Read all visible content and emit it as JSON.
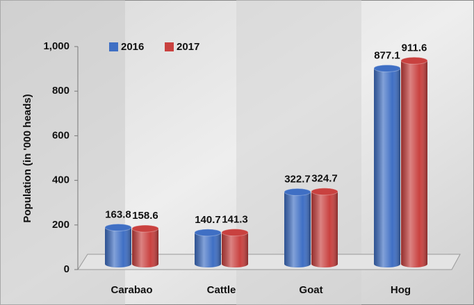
{
  "chart_data": {
    "type": "bar",
    "y_label": "Population  (in '000 heads)",
    "categories": [
      "Carabao",
      "Cattle",
      "Goat",
      "Hog"
    ],
    "series": [
      {
        "name": "2016",
        "color": "#3f6fc4",
        "values": [
          163.8,
          140.7,
          322.7,
          877.1
        ]
      },
      {
        "name": "2017",
        "color": "#c9413f",
        "values": [
          158.6,
          141.3,
          324.7,
          911.6
        ]
      }
    ],
    "ylim": [
      0,
      1000
    ],
    "yticks": [
      0,
      200,
      400,
      600,
      800,
      {
        "value": 1000,
        "label": "1,000"
      }
    ]
  }
}
